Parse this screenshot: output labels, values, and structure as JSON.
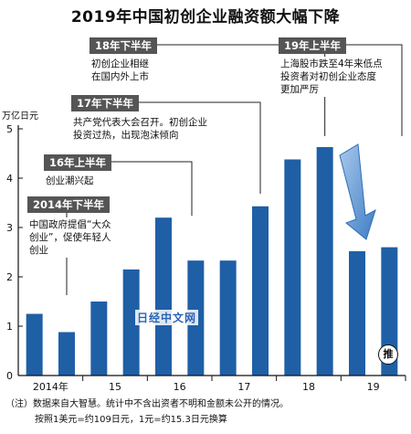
{
  "title": "2019年中国初创企业融资额大幅下降",
  "unit": "万亿日元",
  "chart_data": {
    "type": "bar",
    "title": "2019年中国初创企业融资额大幅下降",
    "ylabel": "万亿日元",
    "ylim": [
      0,
      5
    ],
    "yticks": [
      0,
      1,
      2,
      3,
      4,
      5
    ],
    "grid": false,
    "bar_color": "#1f5fa6",
    "x_tick_labels": [
      "2014年",
      "15",
      "16",
      "17",
      "18",
      "19"
    ],
    "categories": [
      "2014上",
      "2014下",
      "2015上",
      "2015下",
      "2016上",
      "2016下",
      "2017上",
      "2017下",
      "2018上",
      "2018下",
      "2019上",
      "2019下"
    ],
    "values": [
      1.25,
      0.88,
      1.5,
      2.15,
      3.2,
      2.33,
      2.33,
      3.43,
      4.38,
      4.63,
      2.52,
      2.6
    ]
  },
  "annotations": [
    {
      "head": "2014年下半年",
      "body": [
        "中国政府提倡“大众",
        "创业”，促使年轻人",
        "创业"
      ]
    },
    {
      "head": "16年上半年",
      "body": [
        "创业潮兴起"
      ]
    },
    {
      "head": "17年下半年",
      "body": [
        "共产党代表大会召开。初创企业",
        "投资过热，出现泡沫倾向"
      ]
    },
    {
      "head": "18年下半年",
      "body": [
        "初创企业相继",
        "在国内外上市"
      ]
    },
    {
      "head": "19年上半年",
      "body": [
        "上海股市跌至4年来低点",
        "投资者对初创企业态度",
        "更加严厉"
      ]
    }
  ],
  "estimate_badge": "推",
  "watermark": "日经中文网",
  "notes": [
    "（注）数据来自大智慧。统计中不含出资者不明和金额未公开的情况。",
    "按照1美元=约109日元，1元=约15.3日元换算"
  ],
  "colors": {
    "bar": "#1f5fa6",
    "annotation_head": "#555555",
    "arrow": "#6aa1d8"
  }
}
